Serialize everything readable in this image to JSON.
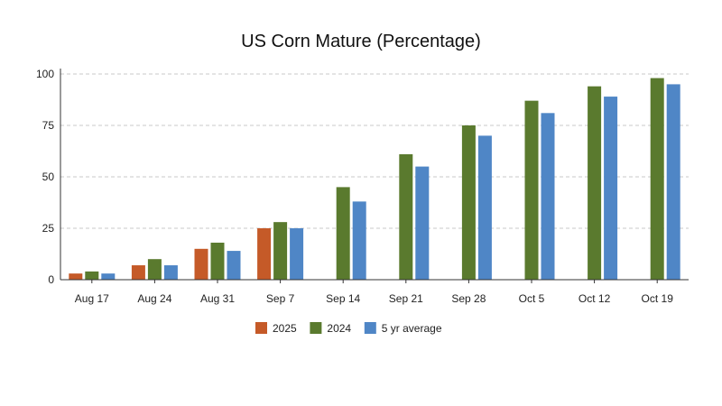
{
  "chart_data": {
    "type": "bar",
    "title": "US Corn Mature (Percentage)",
    "xlabel": "",
    "ylabel": "",
    "ylim": [
      0,
      100
    ],
    "yticks": [
      0,
      25,
      50,
      75,
      100
    ],
    "grid": true,
    "legend_placement": "bottom",
    "categories": [
      "Aug 17",
      "Aug 24",
      "Aug 31",
      "Sep 7",
      "Sep 14",
      "Sep 21",
      "Sep 28",
      "Oct 5",
      "Oct 12",
      "Oct 19"
    ],
    "series": [
      {
        "name": "2025",
        "color": "#c55a28",
        "values": [
          3,
          7,
          15,
          25,
          null,
          null,
          null,
          null,
          null,
          null
        ]
      },
      {
        "name": "2024",
        "color": "#5a7a2e",
        "values": [
          4,
          10,
          18,
          28,
          45,
          61,
          75,
          87,
          94,
          98
        ]
      },
      {
        "name": "5 yr average",
        "color": "#4f86c6",
        "values": [
          3,
          7,
          14,
          25,
          38,
          55,
          70,
          81,
          89,
          95
        ]
      }
    ]
  }
}
